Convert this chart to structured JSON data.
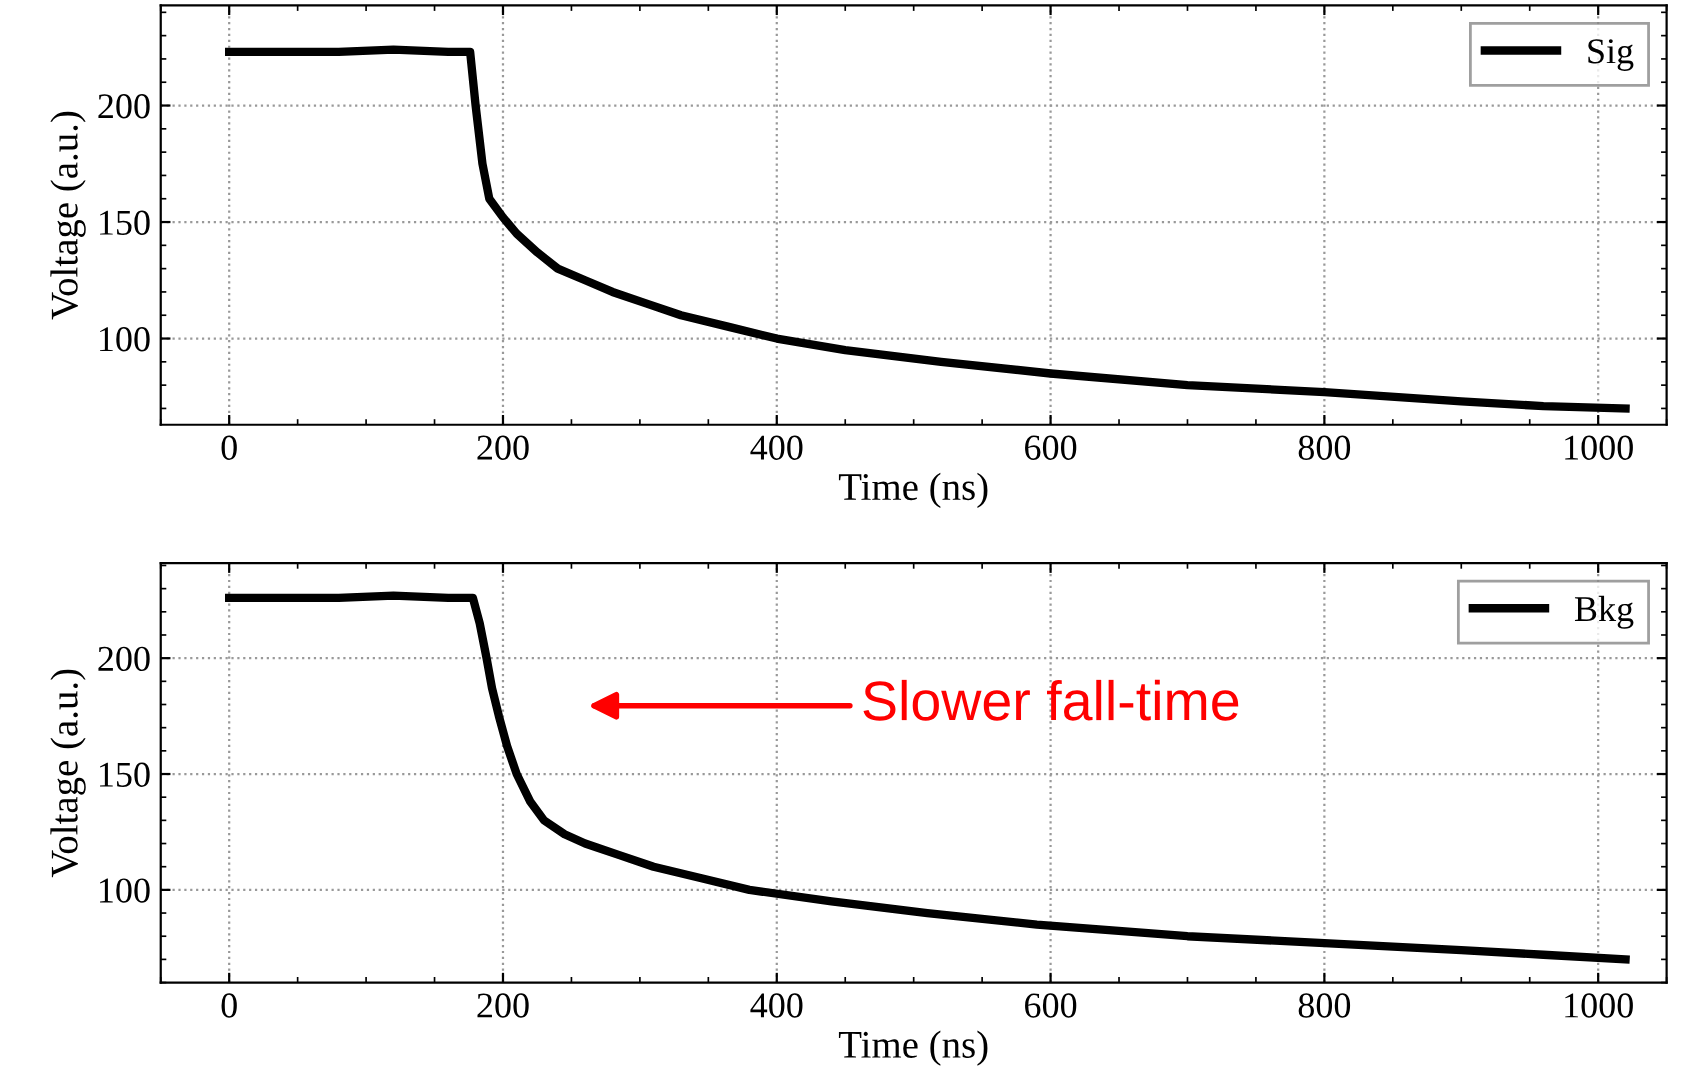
{
  "chart_data": [
    {
      "type": "line",
      "xlabel": "Time (ns)",
      "ylabel": "Voltage (a.u.)",
      "xlim": [
        -50,
        1050
      ],
      "ylim": [
        63,
        243
      ],
      "xticks": [
        0,
        200,
        400,
        600,
        800,
        1000
      ],
      "yticks": [
        100,
        150,
        200
      ],
      "grid": true,
      "legend": "top right",
      "marker": "none",
      "line_style": "solid",
      "series": [
        {
          "name": "Sig",
          "color": "#000000",
          "x": [
            0,
            40,
            80,
            120,
            160,
            176,
            180,
            185,
            190,
            200,
            210,
            225,
            240,
            260,
            280,
            305,
            330,
            365,
            400,
            450,
            520,
            600,
            700,
            800,
            900,
            960,
            1020
          ],
          "values": [
            223,
            223,
            223,
            224,
            223,
            223,
            200,
            175,
            160,
            152,
            145,
            137,
            130,
            125,
            120,
            115,
            110,
            105,
            100,
            95,
            90,
            85,
            80,
            77,
            73,
            71,
            70
          ]
        }
      ]
    },
    {
      "type": "line",
      "xlabel": "Time (ns)",
      "ylabel": "Voltage (a.u.)",
      "xlim": [
        -50,
        1050
      ],
      "ylim": [
        60,
        241
      ],
      "xticks": [
        0,
        200,
        400,
        600,
        800,
        1000
      ],
      "yticks": [
        100,
        150,
        200
      ],
      "grid": true,
      "legend": "top right",
      "marker": "none",
      "line_style": "solid",
      "annotations": [
        "Slower fall-time"
      ],
      "series": [
        {
          "name": "Bkg",
          "color": "#000000",
          "x": [
            0,
            40,
            80,
            120,
            160,
            178,
            183,
            188,
            192,
            197,
            203,
            210,
            220,
            230,
            245,
            260,
            285,
            310,
            345,
            380,
            440,
            510,
            590,
            700,
            800,
            900,
            960,
            1020
          ],
          "values": [
            226,
            226,
            226,
            227,
            226,
            226,
            215,
            200,
            187,
            175,
            162,
            150,
            138,
            130,
            124,
            120,
            115,
            110,
            105,
            100,
            95,
            90,
            85,
            80,
            77,
            74,
            72,
            70
          ]
        }
      ]
    }
  ]
}
